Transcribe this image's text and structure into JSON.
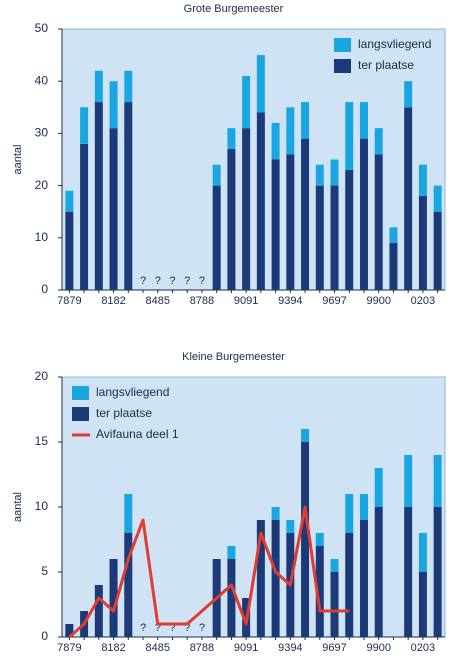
{
  "chart_data": [
    {
      "type": "bar",
      "stacked": true,
      "title": "Grote Burgemeester",
      "y_label": "aantal",
      "categories": [
        "7879",
        null,
        null,
        "8182",
        null,
        null,
        "8485",
        null,
        null,
        "8788",
        null,
        null,
        "9091",
        null,
        null,
        "9394",
        null,
        null,
        "9697",
        null,
        null,
        "9900",
        null,
        null,
        "0203",
        null
      ],
      "series": [
        {
          "name": "ter plaatse",
          "color": "#1c3a78",
          "values": [
            15,
            28,
            36,
            31,
            36,
            null,
            null,
            null,
            null,
            null,
            20,
            27,
            31,
            34,
            25,
            26,
            29,
            20,
            20,
            23,
            29,
            26,
            9,
            35,
            18,
            15
          ]
        },
        {
          "name": "langsvliegend",
          "color": "#1aa6e0",
          "values": [
            4,
            7,
            6,
            9,
            6,
            null,
            null,
            null,
            null,
            null,
            4,
            4,
            10,
            11,
            7,
            9,
            7,
            4,
            5,
            13,
            7,
            5,
            3,
            5,
            6,
            5
          ]
        }
      ],
      "annotations": [
        "?",
        "?",
        "?",
        "?",
        "?"
      ],
      "ylim": [
        0,
        50
      ],
      "yticks": [
        0,
        10,
        20,
        30,
        40,
        50
      ],
      "legend": "upper right",
      "background": "#cfe3f5"
    },
    {
      "type": "bar",
      "stacked": true,
      "title": "Kleine Burgemeester",
      "y_label": "aantal",
      "categories": [
        "7879",
        null,
        null,
        "8182",
        null,
        null,
        "8485",
        null,
        null,
        "8788",
        null,
        null,
        "9091",
        null,
        null,
        "9394",
        null,
        null,
        "9697",
        null,
        null,
        "9900",
        null,
        null,
        "0203",
        null
      ],
      "series": [
        {
          "name": "ter plaatse",
          "color": "#1c3a78",
          "values": [
            1,
            2,
            4,
            6,
            8,
            null,
            null,
            null,
            null,
            null,
            6,
            6,
            3,
            9,
            9,
            8,
            15,
            7,
            5,
            8,
            9,
            10,
            0,
            10,
            5,
            10
          ]
        },
        {
          "name": "langsvliegend",
          "color": "#1aa6e0",
          "values": [
            0,
            0,
            0,
            0,
            3,
            null,
            null,
            null,
            null,
            null,
            0,
            1,
            0,
            0,
            1,
            1,
            1,
            1,
            1,
            3,
            2,
            3,
            0,
            4,
            3,
            4
          ]
        },
        {
          "name": "Avifauna deel 1",
          "color": "#e03c31",
          "type": "line",
          "values": [
            0,
            1,
            3,
            2,
            6,
            9,
            1,
            1,
            1,
            2,
            3,
            4,
            1,
            8,
            5,
            4,
            10,
            2,
            2,
            2,
            null,
            null,
            null,
            null,
            null,
            null
          ]
        }
      ],
      "annotations": [
        "?",
        "?",
        "?",
        "?",
        "?"
      ],
      "ylim": [
        0,
        20
      ],
      "yticks": [
        0,
        5,
        10,
        15,
        20
      ],
      "legend": "upper left",
      "background": "#cfe3f5"
    }
  ]
}
